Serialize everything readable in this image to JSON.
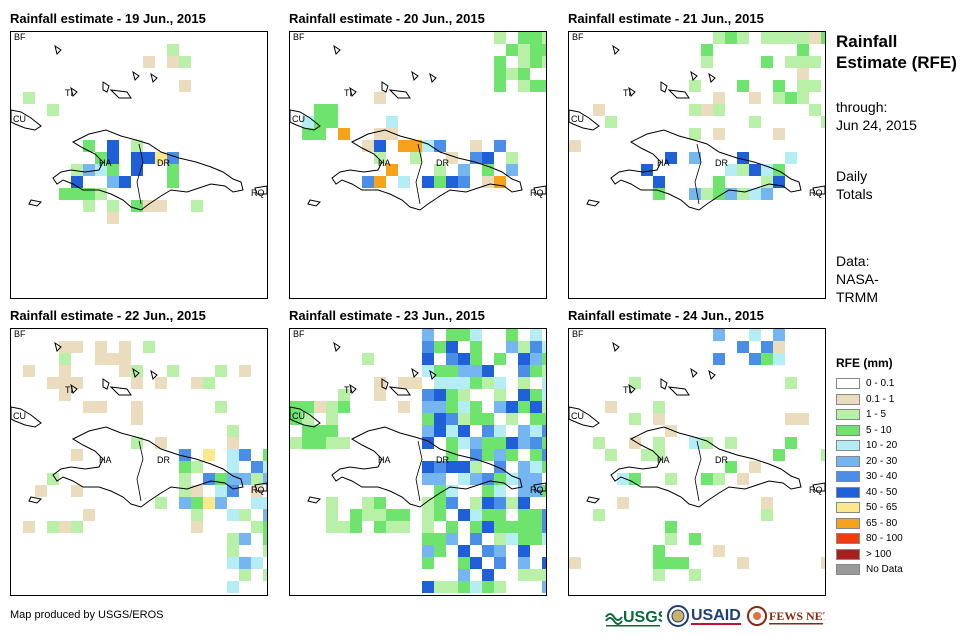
{
  "panels": [
    {
      "title": "Rainfall estimate - 19 Jun., 2015"
    },
    {
      "title": "Rainfall estimate - 20 Jun., 2015"
    },
    {
      "title": "Rainfall estimate - 21 Jun., 2015"
    },
    {
      "title": "Rainfall estimate - 22 Jun., 2015"
    },
    {
      "title": "Rainfall estimate - 23 Jun., 2015"
    },
    {
      "title": "Rainfall estimate - 24 Jun., 2015"
    }
  ],
  "place_labels": {
    "bf": "BF",
    "cu": "CU",
    "ti": "TI",
    "ha": "HA",
    "dr": "DR",
    "rq": "RQ"
  },
  "side_panel": {
    "title": "Rainfall Estimate (RFE)",
    "through": "through:",
    "date": "Jun 24, 2015",
    "period": "Daily Totals",
    "data_label": "Data:",
    "data_source": "NASA-TRMM"
  },
  "legend": {
    "title": "RFE (mm)",
    "items": [
      {
        "label": "0 - 0.1",
        "color": "#ffffff"
      },
      {
        "label": "0.1 - 1",
        "color": "#ecdcbe"
      },
      {
        "label": "1 - 5",
        "color": "#b8f0a8"
      },
      {
        "label": "5 - 10",
        "color": "#6ee46e"
      },
      {
        "label": "10 - 20",
        "color": "#b4eef4"
      },
      {
        "label": "20 - 30",
        "color": "#76b6f0"
      },
      {
        "label": "30 - 40",
        "color": "#4a8ee8"
      },
      {
        "label": "40 - 50",
        "color": "#1f60d8"
      },
      {
        "label": "50 - 65",
        "color": "#fce88a"
      },
      {
        "label": "65 - 80",
        "color": "#f6a21a"
      },
      {
        "label": "80 - 100",
        "color": "#f23c10"
      },
      {
        "label": "> 100",
        "color": "#a8201c"
      },
      {
        "label": "No Data",
        "color": "#999999"
      }
    ]
  },
  "footer": {
    "credit": "Map produced by USGS/EROS",
    "logos": {
      "usgs": "USGS",
      "usaid": "USAID",
      "fewsnet": "FEWS NET"
    }
  }
}
